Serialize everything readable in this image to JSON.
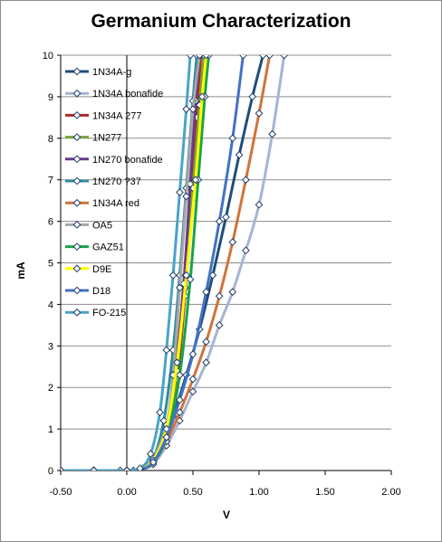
{
  "chart_data": {
    "type": "line",
    "title": "Germanium Characterization",
    "xlabel": "V",
    "ylabel": "mA",
    "xlim": [
      -0.5,
      2.0
    ],
    "ylim": [
      0,
      10
    ],
    "x_ticks": [
      "-0.50",
      "0.00",
      "0.50",
      "1.00",
      "1.50",
      "2.00"
    ],
    "y_ticks": [
      "0",
      "1",
      "2",
      "3",
      "4",
      "5",
      "6",
      "7",
      "8",
      "9",
      "10"
    ],
    "grid": "horizontal",
    "legend_position": "top-left inside",
    "series": [
      {
        "name": "1N34A-g",
        "color": "#1f4e79",
        "points": [
          [
            -0.5,
            0
          ],
          [
            -0.25,
            0
          ],
          [
            -0.05,
            0
          ],
          [
            0.05,
            0
          ],
          [
            0.12,
            0.05
          ],
          [
            0.2,
            0.2
          ],
          [
            0.27,
            0.6
          ],
          [
            0.35,
            1.3
          ],
          [
            0.45,
            2.3
          ],
          [
            0.55,
            3.4
          ],
          [
            0.65,
            4.7
          ],
          [
            0.75,
            6.1
          ],
          [
            0.85,
            7.6
          ],
          [
            0.95,
            9.0
          ],
          [
            1.03,
            10.0
          ]
        ]
      },
      {
        "name": "1N34A bonafide",
        "color": "#a6b4d4",
        "points": [
          [
            -0.5,
            0
          ],
          [
            -0.25,
            0
          ],
          [
            0.0,
            0
          ],
          [
            0.1,
            0.02
          ],
          [
            0.2,
            0.15
          ],
          [
            0.3,
            0.6
          ],
          [
            0.4,
            1.2
          ],
          [
            0.5,
            1.9
          ],
          [
            0.6,
            2.6
          ],
          [
            0.7,
            3.5
          ],
          [
            0.8,
            4.3
          ],
          [
            0.9,
            5.3
          ],
          [
            1.0,
            6.4
          ],
          [
            1.1,
            8.1
          ],
          [
            1.19,
            10.0
          ]
        ]
      },
      {
        "name": "1N34A 277",
        "color": "#b02a2a",
        "points": [
          [
            -0.5,
            0
          ],
          [
            -0.25,
            0
          ],
          [
            0.0,
            0
          ],
          [
            0.1,
            0.03
          ],
          [
            0.2,
            0.2
          ],
          [
            0.3,
            0.8
          ],
          [
            0.38,
            2.2
          ],
          [
            0.44,
            4.2
          ],
          [
            0.49,
            6.5
          ],
          [
            0.53,
            8.5
          ],
          [
            0.56,
            10.0
          ]
        ]
      },
      {
        "name": "1N277",
        "color": "#7aa23a",
        "points": [
          [
            -0.5,
            0
          ],
          [
            -0.25,
            0
          ],
          [
            0.0,
            0
          ],
          [
            0.1,
            0.03
          ],
          [
            0.2,
            0.2
          ],
          [
            0.3,
            0.9
          ],
          [
            0.38,
            2.4
          ],
          [
            0.44,
            4.4
          ],
          [
            0.5,
            6.8
          ],
          [
            0.55,
            8.8
          ],
          [
            0.58,
            10.0
          ]
        ]
      },
      {
        "name": "1N270 bonafide",
        "color": "#6a3a8c",
        "points": [
          [
            -0.5,
            0
          ],
          [
            -0.25,
            0
          ],
          [
            0.0,
            0
          ],
          [
            0.1,
            0.03
          ],
          [
            0.2,
            0.25
          ],
          [
            0.3,
            1.0
          ],
          [
            0.37,
            2.5
          ],
          [
            0.43,
            4.5
          ],
          [
            0.48,
            6.9
          ],
          [
            0.52,
            8.9
          ],
          [
            0.55,
            10.0
          ]
        ]
      },
      {
        "name": "1N270 ?37",
        "color": "#2a8ca0",
        "points": [
          [
            -0.5,
            0
          ],
          [
            -0.25,
            0
          ],
          [
            0.0,
            0
          ],
          [
            0.1,
            0.03
          ],
          [
            0.2,
            0.3
          ],
          [
            0.28,
            1.2
          ],
          [
            0.35,
            2.9
          ],
          [
            0.4,
            4.7
          ],
          [
            0.45,
            6.8
          ],
          [
            0.5,
            8.9
          ],
          [
            0.53,
            10.0
          ]
        ]
      },
      {
        "name": "1N34A red",
        "color": "#d0743a",
        "points": [
          [
            -0.5,
            0
          ],
          [
            -0.25,
            0
          ],
          [
            0.0,
            0
          ],
          [
            0.1,
            0.03
          ],
          [
            0.2,
            0.2
          ],
          [
            0.3,
            0.7
          ],
          [
            0.4,
            1.4
          ],
          [
            0.5,
            2.2
          ],
          [
            0.6,
            3.1
          ],
          [
            0.7,
            4.2
          ],
          [
            0.8,
            5.5
          ],
          [
            0.9,
            7.0
          ],
          [
            1.0,
            8.6
          ],
          [
            1.08,
            10.0
          ]
        ]
      },
      {
        "name": "OA5",
        "color": "#a6a6a6",
        "points": [
          [
            -0.5,
            0
          ],
          [
            -0.25,
            0
          ],
          [
            0.0,
            0
          ],
          [
            0.1,
            0.03
          ],
          [
            0.2,
            0.3
          ],
          [
            0.3,
            1.1
          ],
          [
            0.35,
            2.3
          ],
          [
            0.4,
            4.4
          ],
          [
            0.45,
            6.6
          ],
          [
            0.5,
            8.7
          ],
          [
            0.55,
            10.0
          ]
        ]
      },
      {
        "name": "GAZ51",
        "color": "#1aa34a",
        "points": [
          [
            -0.5,
            0
          ],
          [
            -0.25,
            0
          ],
          [
            0.0,
            0
          ],
          [
            0.1,
            0.02
          ],
          [
            0.2,
            0.2
          ],
          [
            0.3,
            0.8
          ],
          [
            0.4,
            2.3
          ],
          [
            0.48,
            4.6
          ],
          [
            0.54,
            7.0
          ],
          [
            0.59,
            9.0
          ],
          [
            0.62,
            10.0
          ]
        ]
      },
      {
        "name": "D9E",
        "color": "#ffff00",
        "points": [
          [
            -0.5,
            0
          ],
          [
            -0.25,
            0
          ],
          [
            0.0,
            0
          ],
          [
            0.1,
            0.02
          ],
          [
            0.2,
            0.25
          ],
          [
            0.3,
            1.0
          ],
          [
            0.38,
            2.6
          ],
          [
            0.45,
            4.7
          ],
          [
            0.52,
            7.0
          ],
          [
            0.57,
            9.0
          ],
          [
            0.6,
            10.0
          ]
        ]
      },
      {
        "name": "D18",
        "color": "#4472c4",
        "points": [
          [
            -0.5,
            0
          ],
          [
            -0.25,
            0
          ],
          [
            0.0,
            0
          ],
          [
            0.1,
            0.02
          ],
          [
            0.2,
            0.2
          ],
          [
            0.3,
            0.8
          ],
          [
            0.4,
            1.7
          ],
          [
            0.5,
            2.8
          ],
          [
            0.6,
            4.3
          ],
          [
            0.7,
            6.0
          ],
          [
            0.8,
            8.0
          ],
          [
            0.88,
            10.0
          ]
        ]
      },
      {
        "name": "FO-215",
        "color": "#4aa3c8",
        "points": [
          [
            -0.5,
            0
          ],
          [
            -0.25,
            0
          ],
          [
            0.0,
            0
          ],
          [
            0.1,
            0.05
          ],
          [
            0.18,
            0.4
          ],
          [
            0.25,
            1.4
          ],
          [
            0.3,
            2.9
          ],
          [
            0.35,
            4.7
          ],
          [
            0.4,
            6.7
          ],
          [
            0.45,
            8.7
          ],
          [
            0.48,
            10.0
          ]
        ]
      }
    ]
  }
}
